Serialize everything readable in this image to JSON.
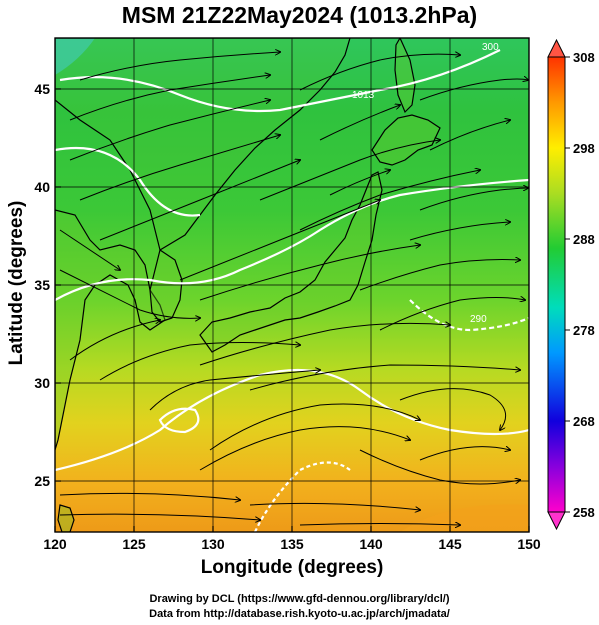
{
  "title": "MSM 21Z22May2024 (1013.2hPa)",
  "xlabel": "Longitude (degrees)",
  "ylabel": "Latitude  (degrees)",
  "credit_line1": "Drawing by DCL (https://www.gfd-dennou.org/library/dcl/)",
  "credit_line2": "Data from http://database.rish.kyoto-u.ac.jp/arch/jmadata/",
  "chart_data": {
    "type": "heatmap",
    "title": "MSM 21Z22May2024 (1013.2hPa)",
    "xlabel": "Longitude (degrees)",
    "ylabel": "Latitude  (degrees)",
    "xlim": [
      120,
      150
    ],
    "ylim": [
      22.4,
      47.6
    ],
    "x_ticks": [
      120,
      125,
      130,
      135,
      140,
      145,
      150
    ],
    "y_ticks": [
      25,
      30,
      35,
      40,
      45
    ],
    "grid": true,
    "colorbar": {
      "range": [
        258,
        308
      ],
      "ticks": [
        258,
        268,
        278,
        288,
        298,
        308
      ],
      "placement": "right",
      "colors": [
        "#ff00cc",
        "#2200dd",
        "#0099ff",
        "#00ddbb",
        "#22cc33",
        "#77dd22",
        "#ffee00",
        "#ff9900",
        "#ff3300"
      ]
    },
    "contour_labels": [
      "1013",
      "300",
      "290"
    ],
    "field": {
      "gradient_axis": "south-to-north",
      "lat_stops": [
        24,
        27,
        30,
        33,
        36,
        40,
        44,
        47
      ],
      "values": [
        299,
        297,
        294,
        291,
        289,
        287,
        285,
        282
      ]
    }
  }
}
